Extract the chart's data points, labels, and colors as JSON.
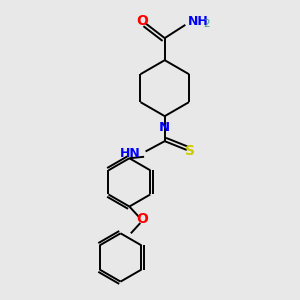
{
  "background_color": "#e8e8e8",
  "bond_color": "#000000",
  "atom_colors": {
    "O": "#ff0000",
    "N": "#0000ff",
    "S": "#cccc00",
    "H": "#4a9b8e",
    "C": "#000000"
  },
  "figsize": [
    3.0,
    3.0
  ],
  "dpi": 100,
  "lw": 1.4,
  "xlim": [
    0,
    10
  ],
  "ylim": [
    0,
    10
  ]
}
